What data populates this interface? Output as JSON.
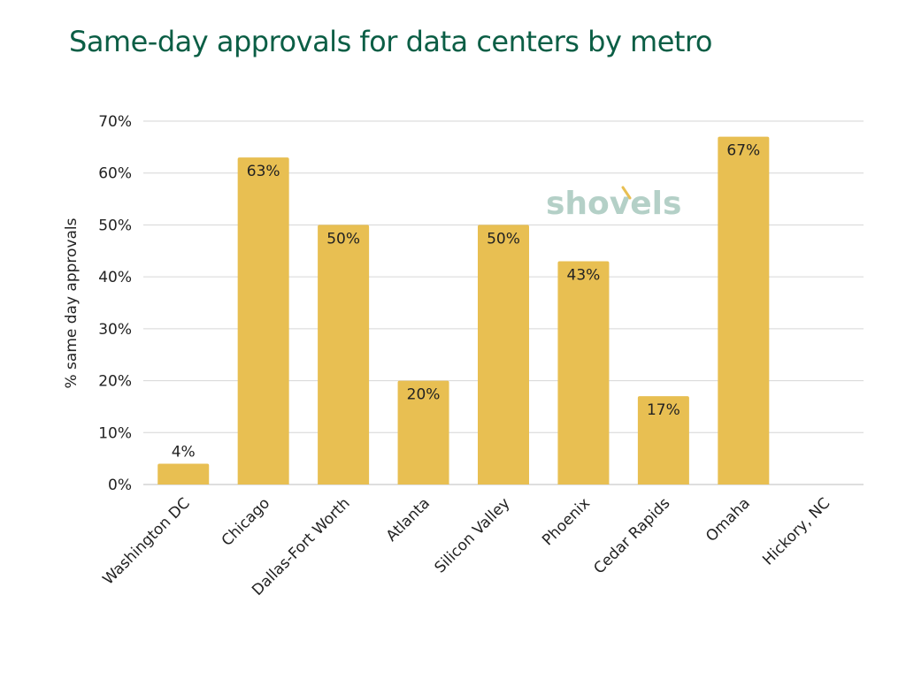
{
  "chart_data": {
    "type": "bar",
    "title": "Same-day approvals for data centers by metro",
    "xlabel": "",
    "ylabel": "% same day approvals",
    "categories": [
      "Washington DC",
      "Chicago",
      "Dallas-Fort Worth",
      "Atlanta",
      "Silicon Valley",
      "Phoenix",
      "Cedar Rapids",
      "Omaha",
      "Hickory, NC"
    ],
    "values": [
      4,
      63,
      50,
      20,
      50,
      43,
      17,
      67,
      0
    ],
    "data_labels": [
      "4%",
      "63%",
      "50%",
      "20%",
      "50%",
      "43%",
      "17%",
      "67%",
      ""
    ],
    "ylim": [
      0,
      70
    ],
    "yticks": [
      0,
      10,
      20,
      30,
      40,
      50,
      60,
      70
    ],
    "ytick_labels": [
      "0%",
      "10%",
      "20%",
      "30%",
      "40%",
      "50%",
      "60%",
      "70%"
    ],
    "grid": true,
    "legend": "none"
  },
  "colors": {
    "title": "#0b5e45",
    "bar": "#e8bf52",
    "grid": "#d6d6d6",
    "axis": "#bdbdbd",
    "logo": "#b4d0c7",
    "logo_accent": "#e8bf52"
  },
  "watermark": {
    "text": "shovels",
    "icon": "shovel-logo"
  }
}
